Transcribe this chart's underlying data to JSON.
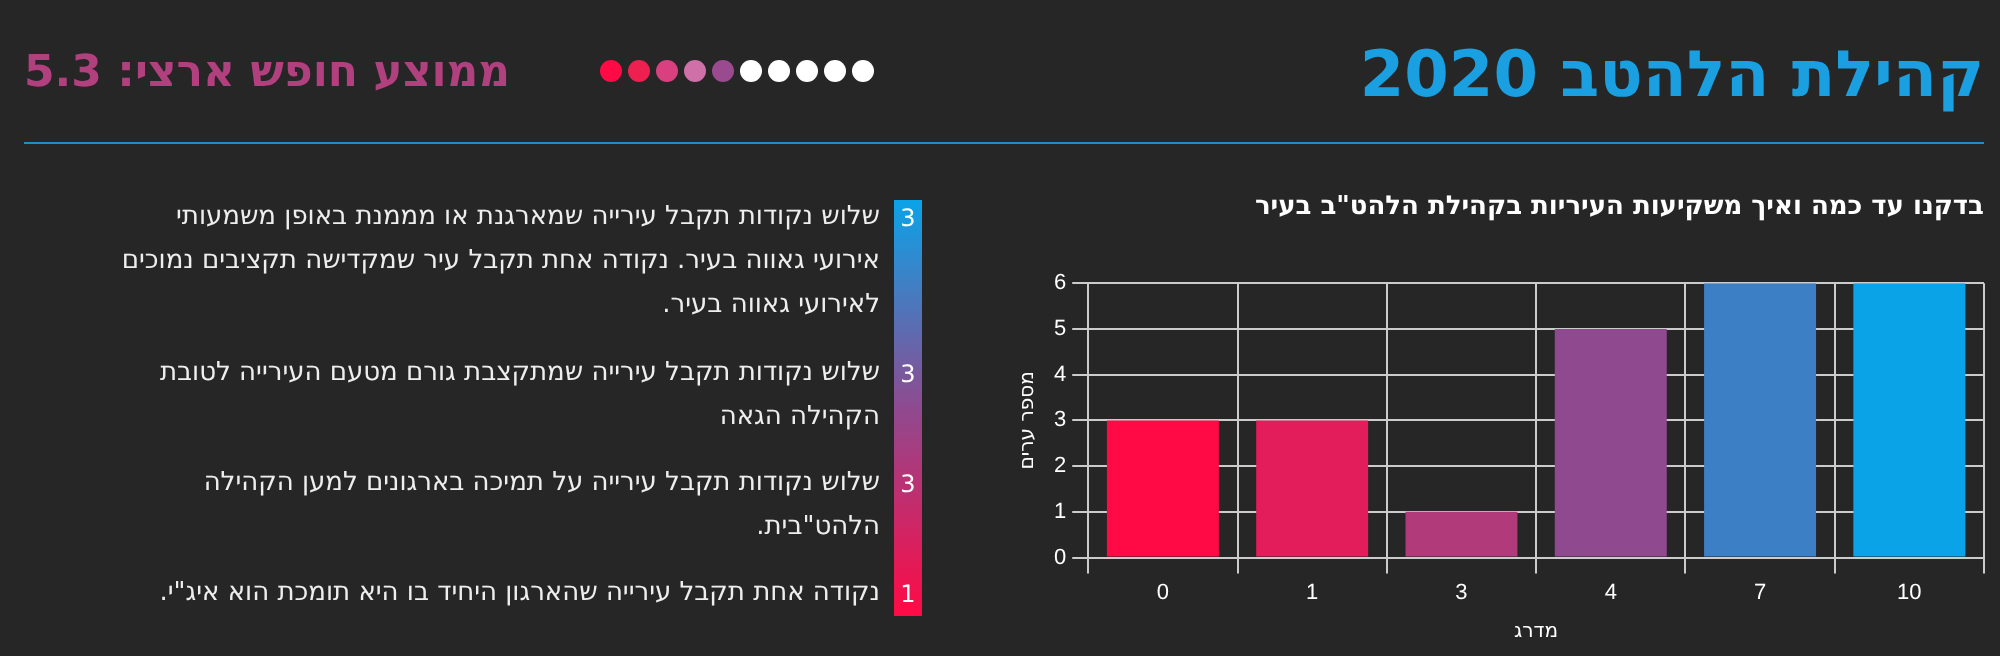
{
  "chart_data": [
    {
      "type": "other",
      "title": "קהילת הלהטב 2020",
      "subtitle": "ממוצע חופש ארצי: 5.3",
      "annotations": [
        "3",
        "שלוש נקודות תקבל עירייה שמארגנת או מממנת באופן משמעותי אירועי גאווה בעיר. נקודה אחת תקבל עיר שמקדישה תקציבים נמוכים לאירועי גאווה בעיר.",
        "3",
        "שלוש נקודות תקבל עירייה שמתקצבת גורם מטעם העירייה לטובת הקהילה הגאה",
        "3",
        "שלוש נקודות תקבל עירייה על תמיכה בארגונים למען הקהילה הלהט\"בית.",
        "1",
        "נקודה אחת תקבל עירייה שהארגון היחיד בו היא תומכת הוא איג\"י."
      ]
    },
    {
      "type": "bar",
      "title": "בדקנו עד כמה ואיך משקיעות העיריות בקהילת הלהט\"ב בעיר",
      "xlabel": "מדרג",
      "ylabel": "מספר ערים",
      "categories": [
        "0",
        "1",
        "3",
        "4",
        "7",
        "10"
      ],
      "values": [
        3,
        3,
        1,
        5,
        6,
        6
      ],
      "colors": [
        "#ff0a45",
        "#e31d5c",
        "#b03a7a",
        "#8f4a8f",
        "#3d7fc4",
        "#0aa3e8"
      ],
      "ylim": [
        0,
        6
      ],
      "yticks": [
        0,
        1,
        2,
        3,
        4,
        5,
        6
      ],
      "grid": true
    }
  ]
}
